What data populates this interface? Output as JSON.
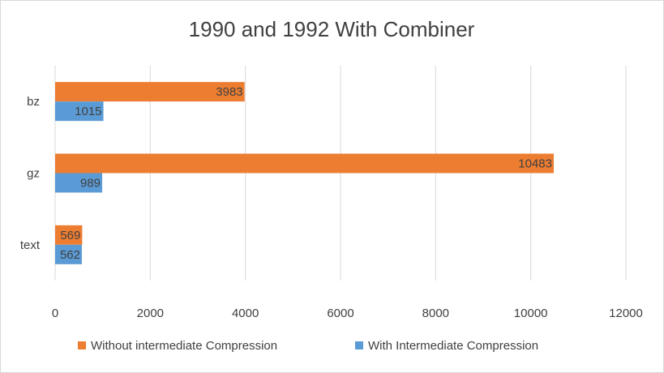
{
  "chart_data": {
    "type": "bar",
    "orientation": "horizontal",
    "title": "1990 and 1992 With Combiner",
    "categories": [
      "bz",
      "gz",
      "text"
    ],
    "series": [
      {
        "name": "Without intermediate Compression",
        "color": "#ed7d31",
        "values": [
          3983,
          10483,
          569
        ]
      },
      {
        "name": "With Intermediate Compression",
        "color": "#5b9bd5",
        "values": [
          1015,
          989,
          562
        ]
      }
    ],
    "xlim": [
      0,
      12000
    ],
    "xticks": [
      0,
      2000,
      4000,
      6000,
      8000,
      10000,
      12000
    ],
    "xlabel": "",
    "ylabel": "",
    "grid": "vertical",
    "legend": "bottom",
    "data_labels": true
  }
}
